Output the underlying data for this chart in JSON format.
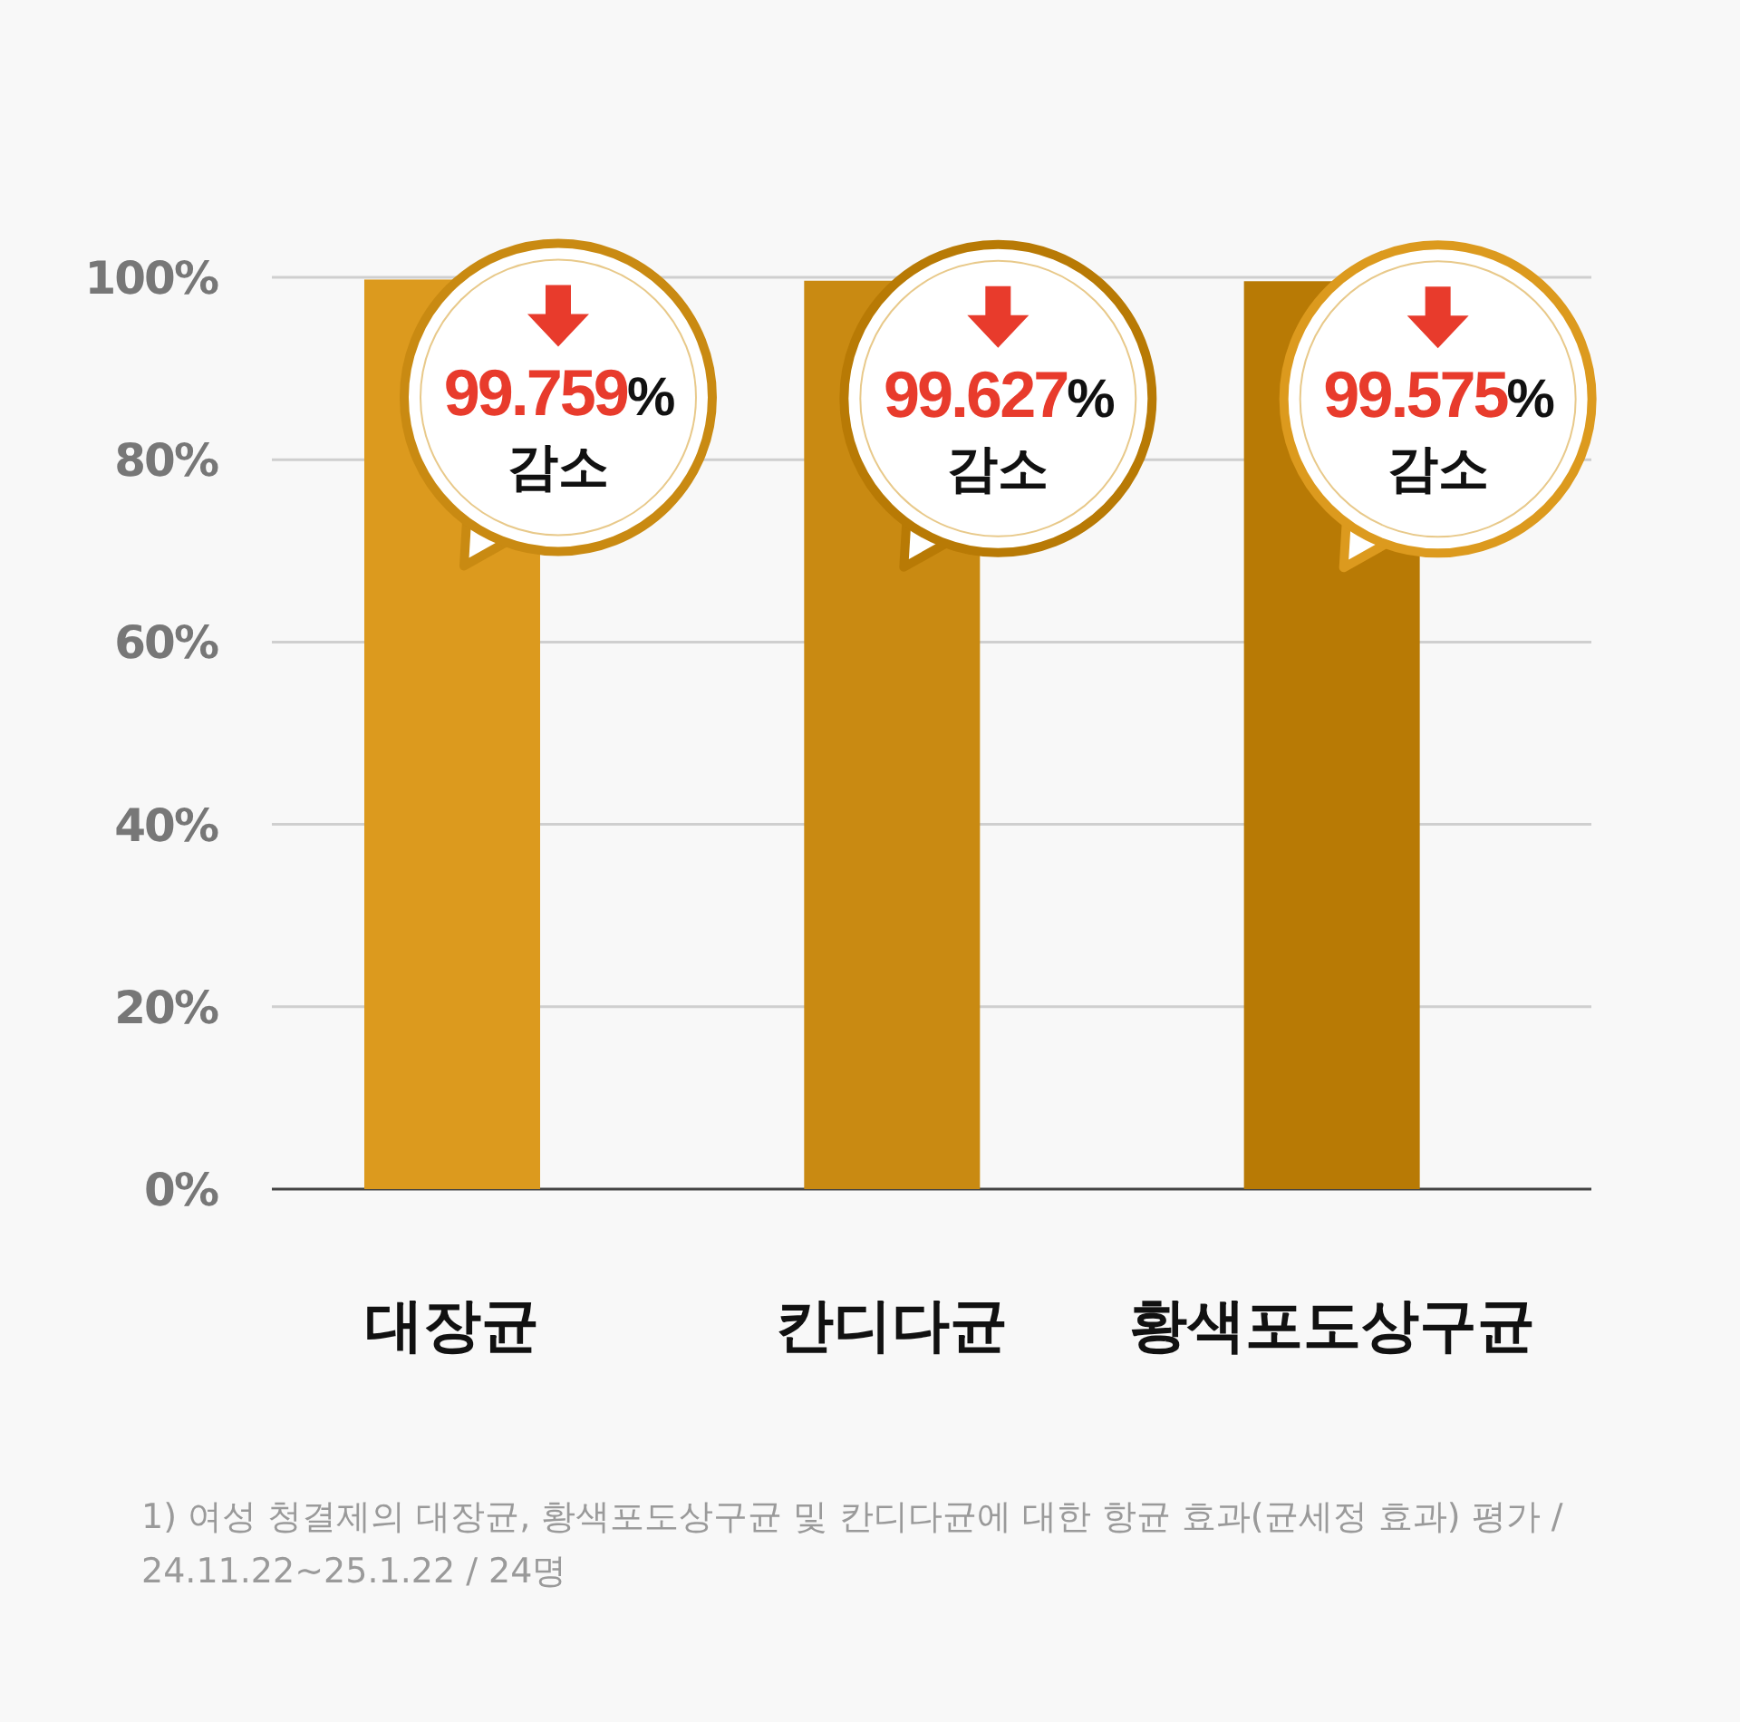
{
  "chart_data": {
    "type": "bar",
    "categories": [
      "대장균",
      "칸디다균",
      "황색포도상구균"
    ],
    "values": [
      99.759,
      99.627,
      99.575
    ],
    "colors": [
      "#dc9a1e",
      "#c98a12",
      "#b87a05"
    ],
    "value_labels": [
      "99.759% 감소",
      "99.627% 감소",
      "99.575% 감소"
    ],
    "ylim": [
      0,
      100
    ],
    "yticks": [
      {
        "value": 0,
        "label": "0%"
      },
      {
        "value": 20,
        "label": "20%"
      },
      {
        "value": 40,
        "label": "40%"
      },
      {
        "value": 60,
        "label": "60%"
      },
      {
        "value": 80,
        "label": "80%"
      },
      {
        "value": 100,
        "label": "100%"
      }
    ],
    "grid": "y",
    "annotations": [
      "1) 여성 청결제의 대장균, 황색포도상구균 및 칸디다균에 대한 항균 효과(균세정 효과) 평가 / 24.11.22~25.1.22 / 24명"
    ]
  }
}
